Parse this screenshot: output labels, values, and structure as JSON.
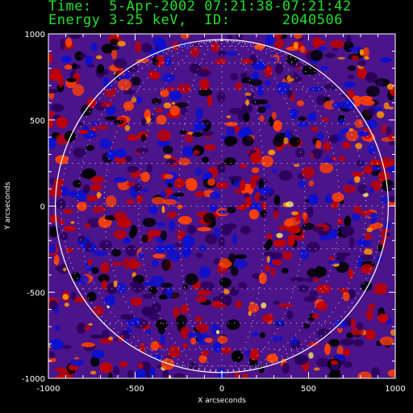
{
  "header": {
    "line1": "Time:  5-Apr-2002 07:21:38-07:21:42",
    "line2": "Energy 3-25 keV,  ID:      2040506"
  },
  "colors": {
    "header_text": "#22e02a",
    "background": "#000000",
    "axes": "#ffffff",
    "limb_circle": "#ffffff",
    "grid_dots": "#ffffff",
    "colormap": [
      "#000000",
      "#2a005a",
      "#4b148a",
      "#0a10d0",
      "#c00000",
      "#ff4000",
      "#ff9000",
      "#ffe860",
      "#ffffff"
    ]
  },
  "chart_data": {
    "type": "heatmap",
    "title": "",
    "xlabel": "X arcseconds",
    "ylabel": "Y arcseconds",
    "xlim": [
      -1000,
      1000
    ],
    "ylim": [
      -1000,
      1000
    ],
    "xticks": [
      -1000,
      -500,
      0,
      500,
      1000
    ],
    "yticks": [
      -1000,
      -500,
      0,
      500,
      1000
    ],
    "xtick_labels": [
      "-1000",
      "-500",
      "0",
      "500",
      "1000"
    ],
    "ytick_labels": [
      "-1000",
      "-500",
      "0",
      "500",
      "1000"
    ],
    "colormap": "hot/purple (RHESSI)",
    "solar_limb": {
      "center": [
        0,
        0
      ],
      "radius": 960
    },
    "heliographic_grid": {
      "shown": true,
      "style": "dotted",
      "spacing_deg": 15
    },
    "grid": false,
    "legend": "none"
  }
}
